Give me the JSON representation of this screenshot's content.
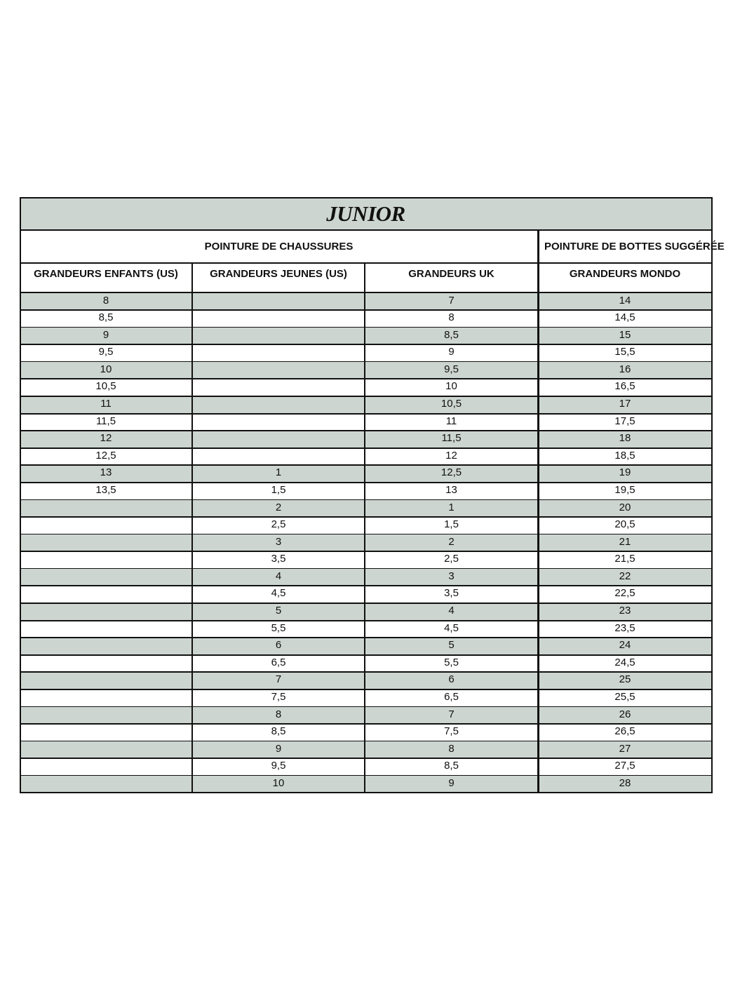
{
  "header": {
    "title": "JUNIOR"
  },
  "table": {
    "groups": [
      "POINTURE DE CHAUSSURES",
      "POINTURE DE BOTTES SUGGÉRÉE"
    ],
    "columns": [
      "GRANDEURS ENFANTS (US)",
      "GRANDEURS JEUNES (US)",
      "GRANDEURS UK",
      "GRANDEURS MONDO"
    ],
    "rows": [
      [
        "8",
        null,
        "7",
        "14"
      ],
      [
        "8,5",
        null,
        "8",
        "14,5"
      ],
      [
        "9",
        null,
        "8,5",
        "15"
      ],
      [
        "9,5",
        null,
        "9",
        "15,5"
      ],
      [
        "10",
        null,
        "9,5",
        "16"
      ],
      [
        "10,5",
        null,
        "10",
        "16,5"
      ],
      [
        "11",
        null,
        "10,5",
        "17"
      ],
      [
        "11,5",
        null,
        "11",
        "17,5"
      ],
      [
        "12",
        null,
        "11,5",
        "18"
      ],
      [
        "12,5",
        null,
        "12",
        "18,5"
      ],
      [
        "13",
        "1",
        "12,5",
        "19"
      ],
      [
        "13,5",
        "1,5",
        "13",
        "19,5"
      ],
      [
        null,
        "2",
        "1",
        "20"
      ],
      [
        null,
        "2,5",
        "1,5",
        "20,5"
      ],
      [
        null,
        "3",
        "2",
        "21"
      ],
      [
        null,
        "3,5",
        "2,5",
        "21,5"
      ],
      [
        null,
        "4",
        "3",
        "22"
      ],
      [
        null,
        "4,5",
        "3,5",
        "22,5"
      ],
      [
        null,
        "5",
        "4",
        "23"
      ],
      [
        null,
        "5,5",
        "4,5",
        "23,5"
      ],
      [
        null,
        "6",
        "5",
        "24"
      ],
      [
        null,
        "6,5",
        "5,5",
        "24,5"
      ],
      [
        null,
        "7",
        "6",
        "25"
      ],
      [
        null,
        "7,5",
        "6,5",
        "25,5"
      ],
      [
        null,
        "8",
        "7",
        "26"
      ],
      [
        null,
        "8,5",
        "7,5",
        "26,5"
      ],
      [
        null,
        "9",
        "8",
        "27"
      ],
      [
        null,
        "9,5",
        "8,5",
        "27,5"
      ],
      [
        null,
        "10",
        "9",
        "28"
      ]
    ]
  }
}
